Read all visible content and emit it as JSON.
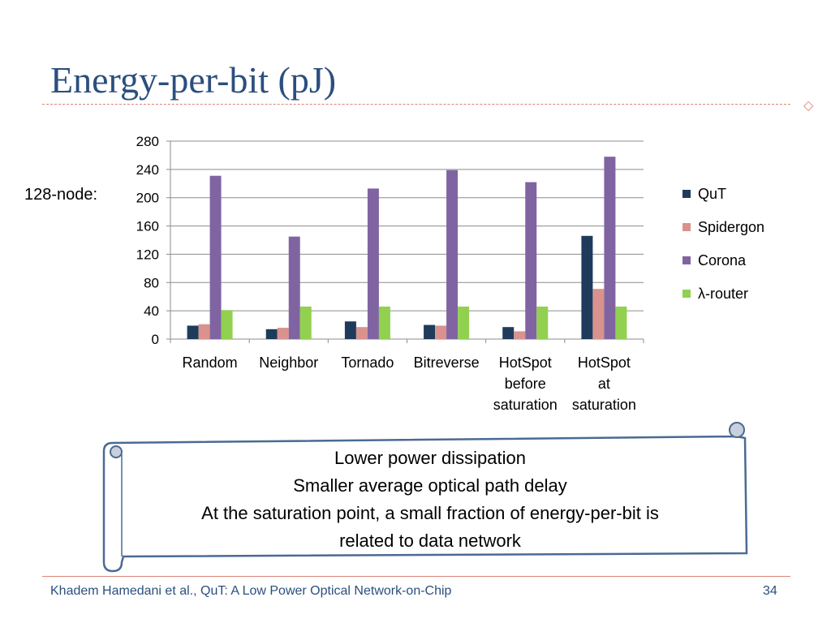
{
  "slide": {
    "title": "Energy-per-bit (pJ)",
    "node_label": "128-node:",
    "footer": "Khadem Hamedani et al., QuT: A Low Power Optical Network-on-Chip",
    "page_number": "34",
    "callout_lines": [
      "Lower power dissipation",
      "Smaller average optical path delay",
      "At the saturation point,  a small fraction of energy-per-bit is",
      "related to data network"
    ]
  },
  "colors": {
    "title": "#2b4f7e",
    "rule": "#d9857a",
    "scroll_border": "#4a6a93",
    "scroll_knob": "#c7d0dc"
  },
  "chart_data": {
    "type": "bar",
    "categories": [
      [
        "Random"
      ],
      [
        "Neighbor"
      ],
      [
        "Tornado"
      ],
      [
        "Bitreverse"
      ],
      [
        "HotSpot",
        "before",
        "saturation"
      ],
      [
        "HotSpot",
        "at",
        "saturation"
      ]
    ],
    "series": [
      {
        "name": "QuT",
        "color": "#1f3b5c",
        "values": [
          19,
          14,
          25,
          20,
          17,
          146
        ]
      },
      {
        "name": "Spidergon",
        "color": "#d9928d",
        "values": [
          21,
          16,
          17,
          19,
          11,
          71
        ]
      },
      {
        "name": "Corona",
        "color": "#8064a2",
        "values": [
          231,
          145,
          213,
          239,
          222,
          258
        ]
      },
      {
        "name": "λ-router",
        "color": "#92d050",
        "values": [
          41,
          46,
          46,
          46,
          46,
          46
        ]
      }
    ],
    "ylim": [
      0,
      280
    ],
    "yticks": [
      0,
      40,
      80,
      120,
      160,
      200,
      240,
      280
    ],
    "grid": true,
    "legend": "right",
    "xlabel": "",
    "ylabel": ""
  }
}
